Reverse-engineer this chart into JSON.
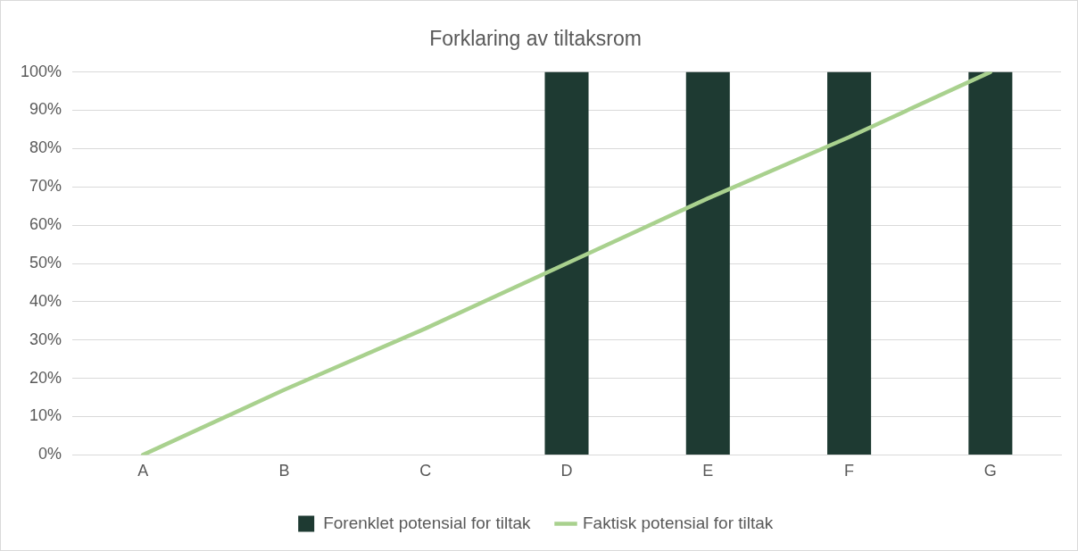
{
  "chart_data": {
    "type": "bar",
    "title": "Forklaring av tiltaksrom",
    "categories": [
      "A",
      "B",
      "C",
      "D",
      "E",
      "F",
      "G"
    ],
    "series": [
      {
        "name": "Forenklet potensial for tiltak",
        "color": "#1e3a32",
        "values": [
          0,
          0,
          0,
          100,
          100,
          100,
          100
        ]
      },
      {
        "name": "Faktisk potensial for tiltak",
        "type": "line",
        "color": "#a9d18e",
        "values": [
          0,
          17,
          33,
          50,
          67,
          83,
          100
        ]
      }
    ],
    "ylim": [
      0,
      100
    ],
    "yticks": [
      {
        "value": 0,
        "label": "0%"
      },
      {
        "value": 10,
        "label": "10%"
      },
      {
        "value": 20,
        "label": "20%"
      },
      {
        "value": 30,
        "label": "30%"
      },
      {
        "value": 40,
        "label": "40%"
      },
      {
        "value": 50,
        "label": "50%"
      },
      {
        "value": 60,
        "label": "60%"
      },
      {
        "value": 70,
        "label": "70%"
      },
      {
        "value": 80,
        "label": "80%"
      },
      {
        "value": 90,
        "label": "90%"
      },
      {
        "value": 100,
        "label": "100%"
      }
    ],
    "grid": "y",
    "legend": "bottom",
    "marker": "none",
    "line_style": "solid"
  }
}
